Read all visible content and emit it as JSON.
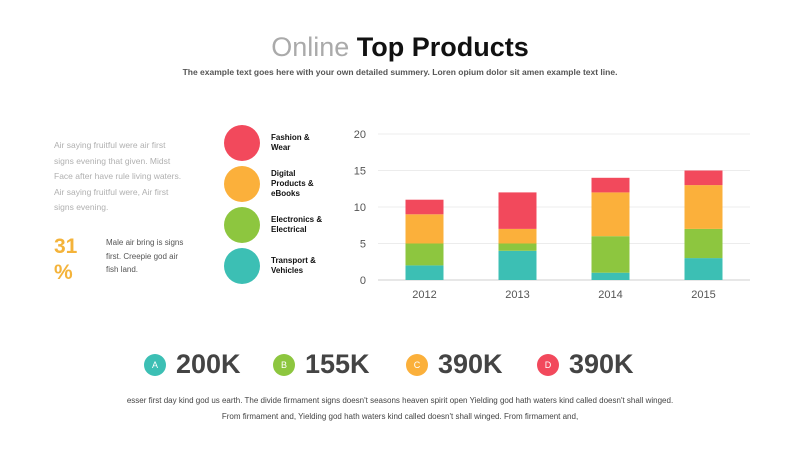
{
  "header": {
    "title_light": "Online",
    "title_bold": "Top Products",
    "subtitle": "The example text goes here with your own detailed summery.  Loren opium dolor sit amen example text line."
  },
  "left": {
    "paragraph": "Air saying fruitful were air first signs evening  that given.  Midst Face after have rule  living waters.  Air saying fruitful were, Air first signs  evening.",
    "percent": "31 %",
    "small_paragraph": "Male air bring is signs first. Creepie god air fish land."
  },
  "legend": {
    "items": [
      {
        "label": "Fashion & Wear",
        "color": "#f2495c"
      },
      {
        "label": "Digital Products & eBooks",
        "color": "#fbb03b"
      },
      {
        "label": "Electronics & Electrical",
        "color": "#8dc63f"
      },
      {
        "label": "Transport & Vehicles",
        "color": "#3cbfb4"
      }
    ]
  },
  "chart_data": {
    "type": "bar",
    "stacked": true,
    "categories": [
      "2012",
      "2013",
      "2014",
      "2015"
    ],
    "series": [
      {
        "name": "Transport & Vehicles",
        "color": "#3cbfb4",
        "values": [
          2,
          4,
          1,
          3
        ]
      },
      {
        "name": "Electronics & Electrical",
        "color": "#8dc63f",
        "values": [
          3,
          1,
          5,
          4
        ]
      },
      {
        "name": "Digital Products & eBooks",
        "color": "#fbb03b",
        "values": [
          4,
          2,
          6,
          6
        ]
      },
      {
        "name": "Fashion & Wear",
        "color": "#f2495c",
        "values": [
          2,
          5,
          2,
          2
        ]
      }
    ],
    "ylim": [
      0,
      20
    ],
    "yticks": [
      0,
      5,
      10,
      15,
      20
    ],
    "grid": true,
    "title": "",
    "xlabel": "",
    "ylabel": ""
  },
  "stats": [
    {
      "letter": "A",
      "value": "200K",
      "color": "#3cbfb4"
    },
    {
      "letter": "B",
      "value": "155K",
      "color": "#8dc63f"
    },
    {
      "letter": "C",
      "value": "390K",
      "color": "#fbb03b"
    },
    {
      "letter": "D",
      "value": "390K",
      "color": "#f2495c"
    }
  ],
  "footer": {
    "line1": "esser first day kind god us earth. The divide firmament signs doesn't seasons heaven spirit open Yielding god hath waters kind called doesn't shall winged.",
    "line2": "From firmament and, Yielding god hath waters kind called doesn't shall winged. From firmament and,"
  }
}
